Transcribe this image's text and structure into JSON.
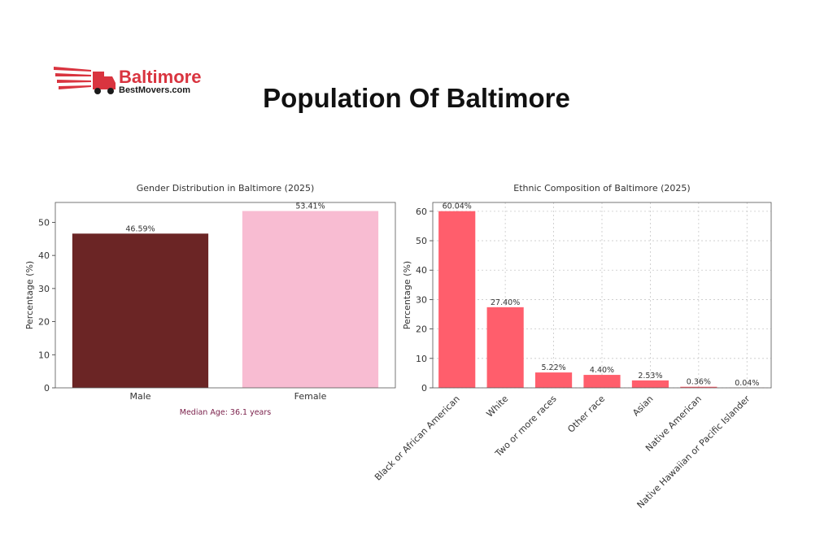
{
  "header": {
    "logo_line1": "Baltimore",
    "logo_line2": "BestMovers.com",
    "title": "Population Of Baltimore"
  },
  "colors": {
    "brand_red": "#d9343f",
    "male": "#6b2525",
    "female": "#f8bcd2",
    "ethnic": "#ff5e6c",
    "note": "#7a1f4a"
  },
  "chart_data": [
    {
      "type": "bar",
      "title": "Gender Distribution in Baltimore (2025)",
      "xlabel": "",
      "ylabel": "Percentage (%)",
      "categories": [
        "Male",
        "Female"
      ],
      "values": [
        46.59,
        53.41
      ],
      "value_labels": [
        "46.59%",
        "53.41%"
      ],
      "ylim": [
        0,
        56
      ],
      "yticks": [
        0,
        10,
        20,
        30,
        40,
        50
      ],
      "grid": false,
      "annotation": "Median Age: 36.1 years"
    },
    {
      "type": "bar",
      "title": "Ethnic Composition of Baltimore (2025)",
      "xlabel": "",
      "ylabel": "Percentage (%)",
      "categories": [
        "Black or African American",
        "White",
        "Two or more races",
        "Other race",
        "Asian",
        "Native American",
        "Native Hawaiian or Pacific Islander"
      ],
      "values": [
        60.04,
        27.4,
        5.22,
        4.4,
        2.53,
        0.36,
        0.04
      ],
      "value_labels": [
        "60.04%",
        "27.40%",
        "5.22%",
        "4.40%",
        "2.53%",
        "0.36%",
        "0.04%"
      ],
      "ylim": [
        0,
        63
      ],
      "yticks": [
        0,
        10,
        20,
        30,
        40,
        50,
        60
      ],
      "grid": true
    }
  ]
}
